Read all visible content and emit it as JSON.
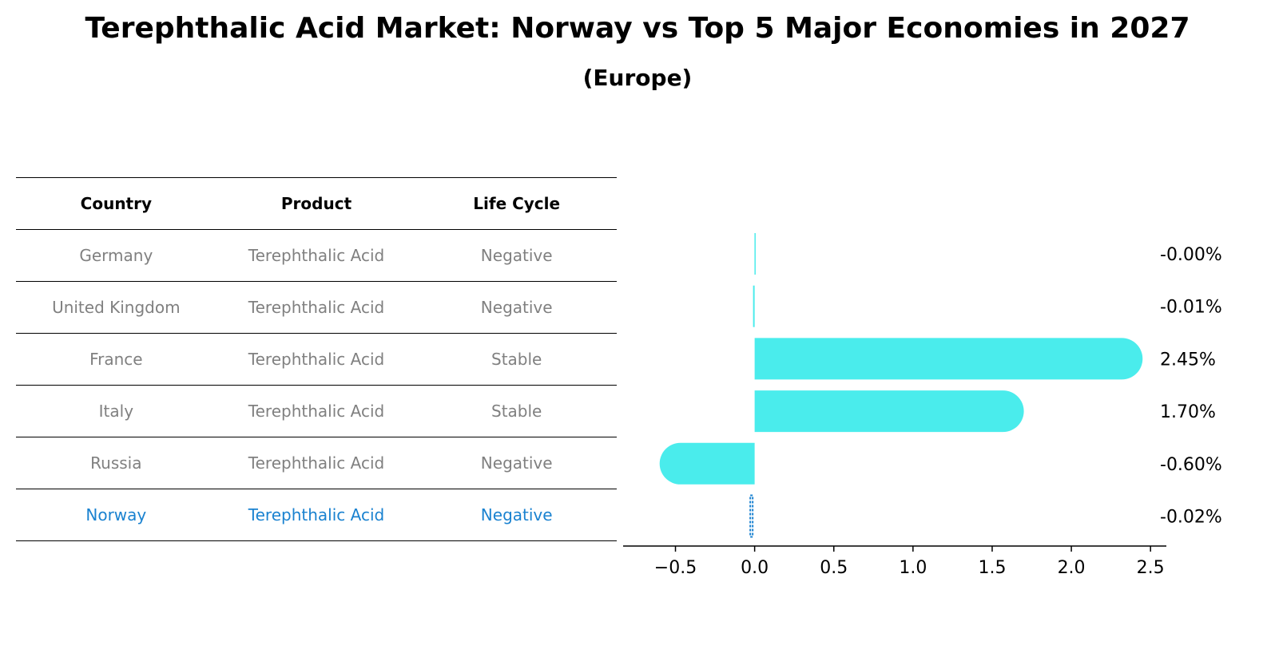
{
  "title": "Terephthalic Acid Market: Norway vs Top 5 Major Economies in 2027",
  "subtitle": "(Europe)",
  "table": {
    "headers": [
      "Country",
      "Product",
      "Life Cycle"
    ],
    "rows": [
      [
        "Germany",
        "Terephthalic Acid",
        "Negative"
      ],
      [
        "United Kingdom",
        "Terephthalic Acid",
        "Negative"
      ],
      [
        "France",
        "Terephthalic Acid",
        "Stable"
      ],
      [
        "Italy",
        "Terephthalic Acid",
        "Stable"
      ],
      [
        "Russia",
        "Terephthalic Acid",
        "Negative"
      ],
      [
        "Norway",
        "Terephthalic Acid",
        "Negative"
      ]
    ]
  },
  "chart_data": {
    "type": "bar",
    "orientation": "horizontal",
    "categories": [
      "Germany",
      "United Kingdom",
      "France",
      "Italy",
      "Russia",
      "Norway"
    ],
    "values": [
      -0.001,
      -0.01,
      2.45,
      1.7,
      -0.6,
      -0.02
    ],
    "data_labels": [
      "-0.00%",
      "-0.01%",
      "2.45%",
      "1.70%",
      "-0.60%",
      "-0.02%"
    ],
    "xlim": [
      -0.77,
      2.6
    ],
    "xticks": [
      -0.5,
      0.0,
      0.5,
      1.0,
      1.5,
      2.0,
      2.5
    ],
    "xtick_labels": [
      "−0.5",
      "0.0",
      "0.5",
      "1.0",
      "1.5",
      "2.0",
      "2.5"
    ],
    "bar_color": "#4aecec",
    "highlight_color": "#1a82d0",
    "highlight_category": "Norway",
    "grid": false
  }
}
